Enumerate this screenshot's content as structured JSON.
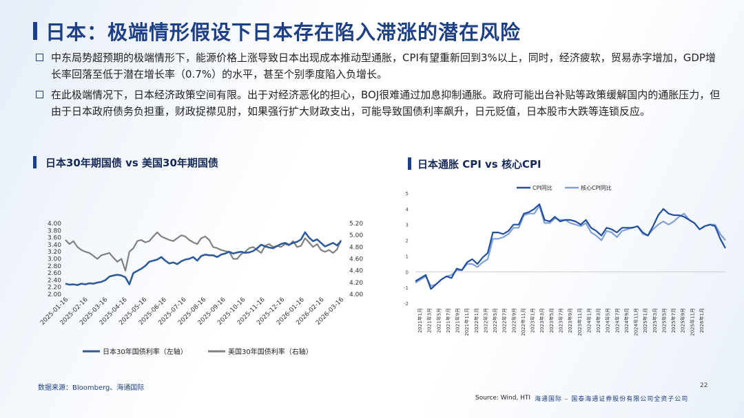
{
  "title": "日本：极端情形假设下日本存在陷入滞涨的潜在风险",
  "bullets": [
    "中东局势超预期的极端情形下，能源价格上涨导致日本出现成本推动型通胀，CPI有望重新回到3%以上，同时，经济疲软，贸易赤字增加，GDP增长率回落至低于潜在增长率（0.7%）的水平，甚至个别季度陷入负增长。",
    "在此极端情况下，日本经济政策空间有限。出于对经济恶化的担心，BOJ很难通过加息抑制通胀。政府可能出台补贴等政策缓解国内的通胀压力，但由于日本政府债务负担重，财政捉襟见肘，如果强行扩大财政支出，可能导致国债利率飙升，日元贬值，日本股市大跌等连锁反应。"
  ],
  "left_title": "日本30年期国债 vs 美国30年期国债",
  "right_title": "日本通胀 CPI vs 核心CPI",
  "source_left": "数据来源：Bloomberg、海通国际",
  "source_right": "Source: Wind, HTI",
  "page_number": "22",
  "company": "海通国际 – 国泰海通证券股份有限公司全资子公司",
  "colors": {
    "primary": "#1d3f86",
    "jp_line": "#2d5a9c",
    "us_line": "#808080",
    "cpi": "#1f4e9e",
    "core_cpi": "#7f9fd8"
  },
  "chart_data": [
    {
      "type": "line",
      "dual_axis": true,
      "x_ticks": [
        "2025-01-16",
        "2025-02-16",
        "2025-03-16",
        "2025-04-16",
        "2025-05-16",
        "2025-06-16",
        "2025-07-16",
        "2025-08-16",
        "2025-09-16",
        "2025-10-16",
        "2025-11-16",
        "2025-12-16",
        "2026-01-16",
        "2026-02-16",
        "2026-03-16"
      ],
      "ylim_left": [
        2.0,
        4.0
      ],
      "yticks_left": [
        "2.00",
        "2.20",
        "2.40",
        "2.60",
        "2.80",
        "3.00",
        "3.20",
        "3.40",
        "3.60",
        "3.80",
        "4.00"
      ],
      "ylim_right": [
        4.0,
        5.2
      ],
      "yticks_right": [
        "4.00",
        "4.20",
        "4.40",
        "4.60",
        "4.80",
        "5.00",
        "5.20"
      ],
      "legend_position": "bottom",
      "series": [
        {
          "name": "日本30年国债利率（左轴）",
          "axis": "left",
          "values": [
            2.3,
            2.27,
            2.28,
            2.26,
            2.3,
            2.28,
            2.31,
            2.3,
            2.33,
            2.35,
            2.4,
            2.5,
            2.53,
            2.55,
            2.53,
            2.48,
            2.28,
            2.6,
            2.66,
            2.72,
            2.8,
            2.92,
            2.95,
            2.98,
            3.05,
            2.95,
            2.87,
            2.9,
            2.85,
            2.93,
            2.98,
            3.0,
            3.05,
            2.95,
            3.08,
            3.12,
            3.1,
            3.1,
            3.05,
            3.12,
            3.15,
            3.2,
            3.15,
            3.18,
            3.2,
            3.17,
            3.18,
            3.22,
            3.3,
            3.4,
            3.35,
            3.32,
            3.3,
            3.36,
            3.42,
            3.45,
            3.4,
            3.45,
            3.48,
            3.55,
            3.75,
            3.6,
            3.5,
            3.55,
            3.45,
            3.35,
            3.4,
            3.45,
            3.38,
            3.5
          ]
        },
        {
          "name": "美国30年国债利率（右轴）",
          "axis": "right",
          "values": [
            4.92,
            4.85,
            4.9,
            4.8,
            4.75,
            4.72,
            4.7,
            4.65,
            4.6,
            4.66,
            4.68,
            4.7,
            4.62,
            4.55,
            4.6,
            4.4,
            4.72,
            4.78,
            4.9,
            4.92,
            4.88,
            4.9,
            4.98,
            5.05,
            4.98,
            4.95,
            4.92,
            4.9,
            4.95,
            5.0,
            4.98,
            4.92,
            4.88,
            4.85,
            4.95,
            4.98,
            4.92,
            4.8,
            4.78,
            4.75,
            4.73,
            4.72,
            4.6,
            4.6,
            4.68,
            4.72,
            4.78,
            4.8,
            4.75,
            4.7,
            4.82,
            4.85,
            4.8,
            4.82,
            4.8,
            4.85,
            4.83,
            4.9,
            4.8,
            4.82,
            4.95,
            4.88,
            4.8,
            4.85,
            4.75,
            4.72,
            4.75,
            4.7,
            4.76,
            4.92
          ]
        }
      ]
    },
    {
      "type": "line",
      "x_ticks": [
        "2021年1月",
        "2021年3月",
        "2021年5月",
        "2021年7月",
        "2021年9月",
        "2021年11月",
        "2022年1月",
        "2022年3月",
        "2022年5月",
        "2022年7月",
        "2022年9月",
        "2022年11月",
        "2023年1月",
        "2023年3月",
        "2023年5月",
        "2023年7月",
        "2023年9月",
        "2023年11月",
        "2024年1月",
        "2024年3月",
        "2024年5月",
        "2024年7月",
        "2024年9月",
        "2024年11月",
        "2025年1月",
        "2025年3月",
        "2025年5月",
        "2025年7月",
        "2025年9月",
        "2025年11月",
        "2026年1月"
      ],
      "ylim": [
        -2,
        5
      ],
      "yticks": [
        "5",
        "4",
        "3",
        "2",
        "1",
        "0",
        "-1",
        "-2"
      ],
      "legend_position": "top",
      "series": [
        {
          "name": "CPI同比",
          "values": [
            -0.6,
            -0.4,
            -0.2,
            -1.1,
            -0.8,
            -0.5,
            -0.3,
            -0.4,
            0.2,
            0.1,
            0.6,
            0.8,
            0.5,
            0.9,
            1.2,
            2.5,
            2.5,
            2.4,
            2.6,
            3.0,
            3.0,
            3.7,
            3.8,
            4.0,
            4.3,
            3.3,
            3.2,
            3.5,
            3.2,
            3.3,
            3.3,
            3.2,
            3.0,
            3.3,
            2.8,
            2.6,
            2.3,
            2.8,
            2.7,
            2.5,
            2.8,
            2.8,
            2.8,
            2.9,
            2.5,
            2.3,
            2.9,
            3.6,
            4.0,
            3.7,
            3.6,
            3.6,
            3.5,
            3.3,
            3.1,
            2.7,
            2.9,
            3.0,
            2.9,
            2.1,
            1.5
          ]
        },
        {
          "name": "核心CPI同比",
          "values": [
            -0.7,
            -0.5,
            -0.3,
            -0.9,
            -0.8,
            -0.5,
            -0.3,
            -0.2,
            0.1,
            0.1,
            0.5,
            0.5,
            0.3,
            0.6,
            0.8,
            2.1,
            2.1,
            2.2,
            2.4,
            2.8,
            2.8,
            3.6,
            3.7,
            3.7,
            4.2,
            3.1,
            3.1,
            3.4,
            3.3,
            3.3,
            3.1,
            3.0,
            2.9,
            3.1,
            2.5,
            2.3,
            2.0,
            2.6,
            2.5,
            2.2,
            2.6,
            2.7,
            2.8,
            2.9,
            2.4,
            2.3,
            2.7,
            3.0,
            3.2,
            3.0,
            3.2,
            3.5,
            3.7,
            3.3,
            3.1,
            2.7,
            2.9,
            3.0,
            3.0,
            2.4,
            2.0
          ]
        }
      ]
    }
  ]
}
